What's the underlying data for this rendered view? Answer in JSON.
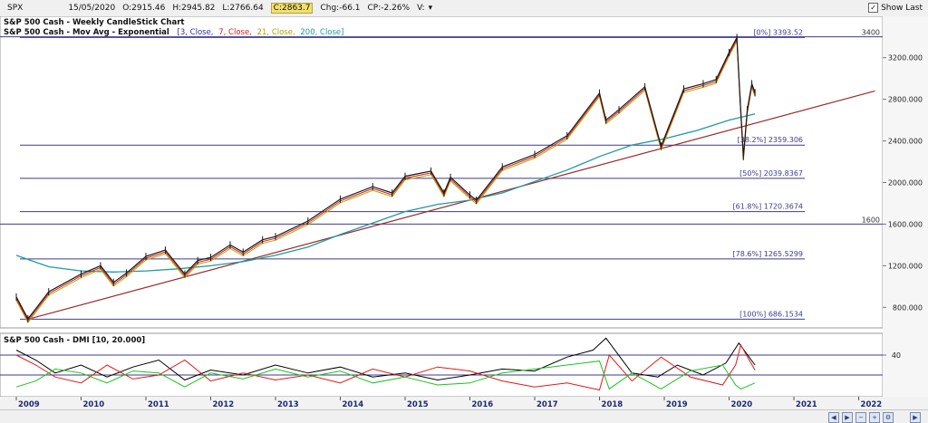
{
  "header": {
    "symbol": "SPX",
    "date": "15/05/2020",
    "open": "O:2915.46",
    "high": "H:2945.82",
    "low": "L:2766.64",
    "close": "C:2863.7",
    "change": "Chg:-66.1",
    "change_pct": "CP:-2.26%",
    "volume": "V:",
    "show_last_label": "Show Last"
  },
  "legend": {
    "line1": "S&P 500 Cash - Weekly CandleStick Chart",
    "line2_prefix": "S&P 500 Cash - Mov Avg - Exponential",
    "ma_params_1": "[3, Close,",
    "ma_params_2": "7, Close,",
    "ma_params_3": "21, Close,",
    "ma_params_4": "200, Close]",
    "dmi_title": "S&P 500 Cash - DMI [10, 20.000]"
  },
  "colors": {
    "price": "#1a1a1a",
    "ma3": "#2b2bbf",
    "ma7": "#d81b1b",
    "ma21": "#b5a200",
    "ma200": "#1f9aa0",
    "fib_line": "#3b3b8f",
    "trendline": "#9b2a2a",
    "adx": "#000000",
    "di_minus": "#e01818",
    "di_plus": "#19c419",
    "dmi_ref": "#3b3b8f"
  },
  "chart_data": [
    {
      "type": "line",
      "title": "S&P 500 Cash - Weekly CandleStick Chart",
      "x_tick_labels": [
        "2009",
        "2010",
        "2011",
        "2012",
        "2013",
        "2014",
        "2015",
        "2016",
        "2017",
        "2018",
        "2019",
        "2020",
        "2021",
        "2022"
      ],
      "y_tick_labels": [
        "3200.000",
        "2800.000",
        "2400.000",
        "2000.000",
        "1600.000",
        "1200.000",
        "800.000"
      ],
      "y_ticks": [
        3200,
        2800,
        2400,
        2000,
        1600,
        1200,
        800
      ],
      "xlim": [
        2009.0,
        2022.3
      ],
      "ylim": [
        620,
        3580
      ],
      "horizontal_levels": [
        {
          "value": 3400,
          "label": "3400"
        },
        {
          "value": 3393.52,
          "label": "[0%] 3393.52"
        },
        {
          "value": 2359.306,
          "label": "[38.2%] 2359.306"
        },
        {
          "value": 2039.8367,
          "label": "[50%] 2039.8367"
        },
        {
          "value": 1720.3674,
          "label": "[61.8%] 1720.3674"
        },
        {
          "value": 1600,
          "label": "1600"
        },
        {
          "value": 1265.5299,
          "label": "[78.6%] 1265.5299"
        },
        {
          "value": 686.1534,
          "label": "[100%] 686.1534"
        }
      ],
      "trendline": {
        "x": [
          2009.18,
          2022.25
        ],
        "y": [
          686,
          2880
        ]
      },
      "series": [
        {
          "name": "S&P 500 Cash",
          "x": [
            2009.0,
            2009.18,
            2009.5,
            2010.0,
            2010.3,
            2010.5,
            2010.7,
            2011.0,
            2011.3,
            2011.6,
            2011.8,
            2012.0,
            2012.3,
            2012.5,
            2012.8,
            2013.0,
            2013.5,
            2014.0,
            2014.5,
            2014.8,
            2015.0,
            2015.4,
            2015.6,
            2015.7,
            2016.0,
            2016.1,
            2016.5,
            2017.0,
            2017.5,
            2018.0,
            2018.1,
            2018.3,
            2018.7,
            2018.95,
            2019.3,
            2019.6,
            2019.8,
            2020.0,
            2020.12,
            2020.17,
            2020.22,
            2020.28,
            2020.35,
            2020.4
          ],
          "y": [
            900,
            690,
            950,
            1120,
            1200,
            1040,
            1130,
            1290,
            1350,
            1120,
            1250,
            1280,
            1400,
            1330,
            1450,
            1480,
            1630,
            1840,
            1960,
            1900,
            2060,
            2110,
            1900,
            2050,
            1880,
            1830,
            2150,
            2270,
            2450,
            2860,
            2600,
            2700,
            2920,
            2350,
            2900,
            2950,
            2990,
            3250,
            3393,
            2800,
            2250,
            2700,
            2950,
            2863
          ]
        },
        {
          "name": "EMA 200",
          "x": [
            2009.0,
            2009.5,
            2010.0,
            2010.5,
            2011.0,
            2011.5,
            2012.0,
            2012.5,
            2013.0,
            2013.5,
            2014.0,
            2014.5,
            2015.0,
            2015.5,
            2016.0,
            2016.5,
            2017.0,
            2017.5,
            2018.0,
            2018.5,
            2019.0,
            2019.5,
            2020.0,
            2020.4
          ],
          "y": [
            1300,
            1190,
            1150,
            1140,
            1150,
            1170,
            1200,
            1240,
            1300,
            1380,
            1500,
            1610,
            1720,
            1790,
            1830,
            1900,
            2010,
            2120,
            2250,
            2360,
            2420,
            2500,
            2600,
            2660
          ]
        }
      ]
    },
    {
      "type": "line",
      "title": "S&P 500 Cash - DMI [10, 20.000]",
      "y_tick_labels": [
        "40"
      ],
      "ylim": [
        0,
        60
      ],
      "reference_levels": [
        40,
        20
      ],
      "series": [
        {
          "name": "ADX",
          "x": [
            2009.0,
            2009.3,
            2009.6,
            2010.0,
            2010.4,
            2010.8,
            2011.2,
            2011.6,
            2012.0,
            2012.5,
            2013.0,
            2013.5,
            2014.0,
            2014.5,
            2015.0,
            2015.5,
            2016.0,
            2016.5,
            2017.0,
            2017.5,
            2017.9,
            2018.1,
            2018.5,
            2018.9,
            2019.2,
            2019.6,
            2019.95,
            2020.15,
            2020.4
          ],
          "y": [
            45,
            35,
            22,
            30,
            18,
            28,
            35,
            15,
            25,
            20,
            30,
            22,
            28,
            18,
            22,
            15,
            20,
            26,
            24,
            38,
            45,
            57,
            22,
            18,
            30,
            20,
            32,
            52,
            30
          ]
        },
        {
          "name": "DI-",
          "x": [
            2009.0,
            2009.3,
            2009.6,
            2010.0,
            2010.4,
            2010.8,
            2011.2,
            2011.6,
            2012.0,
            2012.5,
            2013.0,
            2013.5,
            2014.0,
            2014.5,
            2015.0,
            2015.5,
            2016.0,
            2016.5,
            2017.0,
            2017.5,
            2018.0,
            2018.15,
            2018.5,
            2018.95,
            2019.4,
            2019.9,
            2020.1,
            2020.18,
            2020.4
          ],
          "y": [
            40,
            30,
            18,
            12,
            30,
            16,
            20,
            35,
            14,
            22,
            15,
            20,
            12,
            26,
            18,
            28,
            24,
            14,
            8,
            12,
            5,
            40,
            14,
            38,
            18,
            10,
            30,
            50,
            25
          ]
        },
        {
          "name": "DI+",
          "x": [
            2009.0,
            2009.3,
            2009.6,
            2010.0,
            2010.4,
            2010.8,
            2011.2,
            2011.6,
            2012.0,
            2012.5,
            2013.0,
            2013.5,
            2014.0,
            2014.5,
            2015.0,
            2015.5,
            2016.0,
            2016.5,
            2017.0,
            2017.5,
            2018.0,
            2018.15,
            2018.5,
            2018.95,
            2019.4,
            2019.9,
            2020.1,
            2020.18,
            2020.4
          ],
          "y": [
            8,
            14,
            26,
            22,
            12,
            24,
            22,
            8,
            22,
            16,
            26,
            18,
            24,
            12,
            18,
            10,
            12,
            22,
            26,
            30,
            34,
            6,
            22,
            6,
            24,
            30,
            10,
            6,
            12
          ]
        }
      ]
    }
  ]
}
